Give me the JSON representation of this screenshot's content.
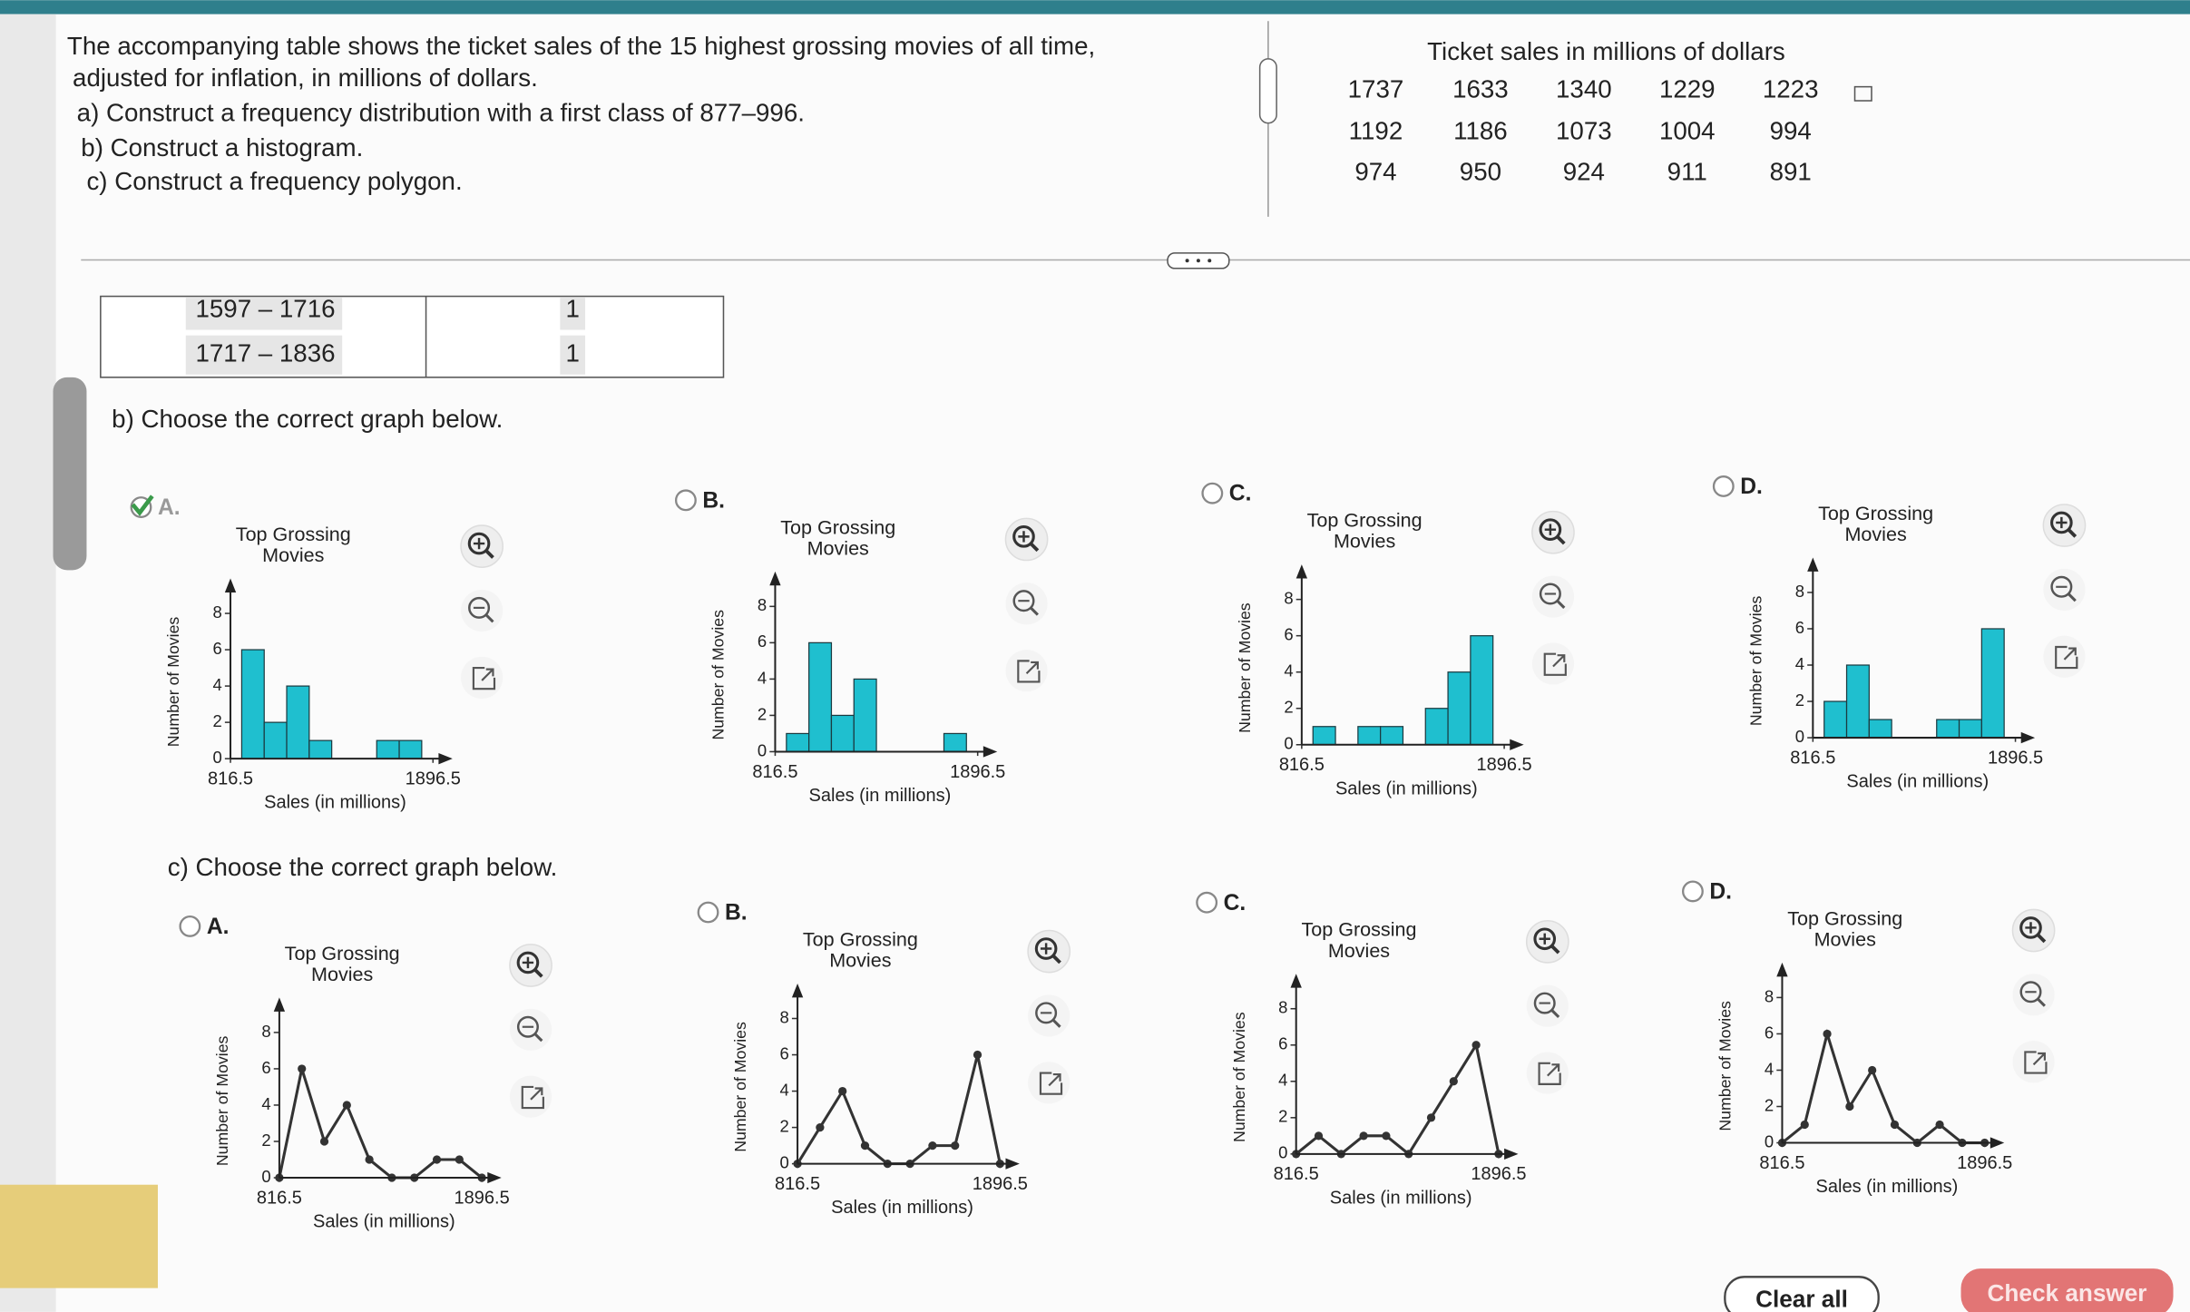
{
  "problem": {
    "lines": [
      "The accompanying table shows the ticket sales of the 15 highest grossing movies of all time,",
      "adjusted for inflation, in millions of dollars.",
      "a) Construct a frequency distribution with a first class of 877–996.",
      "b) Construct a histogram.",
      "c) Construct a frequency polygon."
    ]
  },
  "ticket_table": {
    "title": "Ticket sales in millions of dollars",
    "rows": [
      [
        1737,
        1633,
        1340,
        1229,
        1223
      ],
      [
        1192,
        1186,
        1073,
        1004,
        994
      ],
      [
        974,
        950,
        924,
        911,
        891
      ]
    ]
  },
  "freq_table": {
    "rows": [
      [
        "1597 – 1716",
        1
      ],
      [
        "1717 – 1836",
        1
      ]
    ]
  },
  "part_b": {
    "prompt": "b) Choose the correct graph below.",
    "options": [
      {
        "letter": "A.",
        "selected": true,
        "chart": {
          "type": "histogram",
          "title": "Top Grossing Movies",
          "xlabel": "Sales (in millions)",
          "ylabel": "Number of Movies",
          "bins": [
            876.5,
            996.5,
            1116.5,
            1236.5,
            1356.5,
            1476.5,
            1596.5,
            1716.5,
            1836.5
          ],
          "counts": [
            6,
            2,
            4,
            1,
            0,
            0,
            1,
            1
          ],
          "xlim": [
            816.5,
            1896.5
          ],
          "xticks": [
            816.5,
            1896.5
          ],
          "ylim": [
            0,
            9
          ],
          "yticks": [
            0,
            2,
            4,
            6,
            8
          ],
          "color": "#1fbfcf"
        }
      },
      {
        "letter": "B.",
        "chart": {
          "type": "histogram",
          "title": "Top Grossing Movies",
          "xlabel": "Sales (in millions)",
          "ylabel": "Number of Movies",
          "bins": [
            876.5,
            996.5,
            1116.5,
            1236.5,
            1356.5,
            1476.5,
            1596.5,
            1716.5,
            1836.5
          ],
          "counts": [
            1,
            6,
            2,
            4,
            0,
            0,
            0,
            1
          ],
          "xlim": [
            816.5,
            1896.5
          ],
          "xticks": [
            816.5,
            1896.5
          ],
          "ylim": [
            0,
            9
          ],
          "yticks": [
            0,
            2,
            4,
            6,
            8
          ],
          "color": "#1fbfcf"
        }
      },
      {
        "letter": "C.",
        "chart": {
          "type": "histogram",
          "title": "Top Grossing Movies",
          "xlabel": "Sales (in millions)",
          "ylabel": "Number of Movies",
          "bins": [
            876.5,
            996.5,
            1116.5,
            1236.5,
            1356.5,
            1476.5,
            1596.5,
            1716.5,
            1836.5
          ],
          "counts": [
            1,
            0,
            1,
            1,
            0,
            2,
            4,
            6
          ],
          "xlim": [
            816.5,
            1896.5
          ],
          "xticks": [
            816.5,
            1896.5
          ],
          "ylim": [
            0,
            9
          ],
          "yticks": [
            0,
            2,
            4,
            6,
            8
          ],
          "color": "#1fbfcf"
        }
      },
      {
        "letter": "D.",
        "chart": {
          "type": "histogram",
          "title": "Top Grossing Movies",
          "xlabel": "Sales (in millions)",
          "ylabel": "Number of Movies",
          "bins": [
            876.5,
            996.5,
            1116.5,
            1236.5,
            1356.5,
            1476.5,
            1596.5,
            1716.5,
            1836.5
          ],
          "counts": [
            2,
            4,
            1,
            0,
            0,
            1,
            1,
            6
          ],
          "xlim": [
            816.5,
            1896.5
          ],
          "xticks": [
            816.5,
            1896.5
          ],
          "ylim": [
            0,
            9
          ],
          "yticks": [
            0,
            2,
            4,
            6,
            8
          ],
          "color": "#1fbfcf"
        }
      }
    ]
  },
  "part_c": {
    "prompt": "c) Choose the correct graph below.",
    "options": [
      {
        "letter": "A.",
        "chart": {
          "type": "line",
          "title": "Top Grossing Movies",
          "xlabel": "Sales (in millions)",
          "ylabel": "Number of Movies",
          "x": [
            816.5,
            936.5,
            1056.5,
            1176.5,
            1296.5,
            1416.5,
            1536.5,
            1656.5,
            1776.5,
            1896.5
          ],
          "values": [
            0,
            6,
            2,
            4,
            1,
            0,
            0,
            1,
            1,
            0
          ],
          "xlim": [
            816.5,
            1896.5
          ],
          "xticks": [
            816.5,
            1896.5
          ],
          "ylim": [
            0,
            9
          ],
          "yticks": [
            0,
            2,
            4,
            6,
            8
          ],
          "color": "#333333"
        }
      },
      {
        "letter": "B.",
        "chart": {
          "type": "line",
          "title": "Top Grossing Movies",
          "xlabel": "Sales (in millions)",
          "ylabel": "Number of Movies",
          "x": [
            816.5,
            936.5,
            1056.5,
            1176.5,
            1296.5,
            1416.5,
            1536.5,
            1656.5,
            1776.5,
            1896.5
          ],
          "values": [
            0,
            2,
            4,
            1,
            0,
            0,
            1,
            1,
            6,
            0
          ],
          "xlim": [
            816.5,
            1896.5
          ],
          "xticks": [
            816.5,
            1896.5
          ],
          "ylim": [
            0,
            9
          ],
          "yticks": [
            0,
            2,
            4,
            6,
            8
          ],
          "color": "#333333"
        }
      },
      {
        "letter": "C.",
        "chart": {
          "type": "line",
          "title": "Top Grossing Movies",
          "xlabel": "Sales (in millions)",
          "ylabel": "Number of Movies",
          "x": [
            816.5,
            936.5,
            1056.5,
            1176.5,
            1296.5,
            1416.5,
            1536.5,
            1656.5,
            1776.5,
            1896.5
          ],
          "values": [
            0,
            1,
            0,
            1,
            1,
            0,
            2,
            4,
            6,
            0
          ],
          "xlim": [
            816.5,
            1896.5
          ],
          "xticks": [
            816.5,
            1896.5
          ],
          "ylim": [
            0,
            9
          ],
          "yticks": [
            0,
            2,
            4,
            6,
            8
          ],
          "color": "#333333"
        }
      },
      {
        "letter": "D.",
        "chart": {
          "type": "line",
          "title": "Top Grossing Movies",
          "xlabel": "Sales (in millions)",
          "ylabel": "Number of Movies",
          "x": [
            816.5,
            936.5,
            1056.5,
            1176.5,
            1296.5,
            1416.5,
            1536.5,
            1656.5,
            1776.5,
            1896.5
          ],
          "values": [
            0,
            1,
            6,
            2,
            4,
            1,
            0,
            1,
            0,
            0
          ],
          "xlim": [
            816.5,
            1896.5
          ],
          "xticks": [
            816.5,
            1896.5
          ],
          "ylim": [
            0,
            9
          ],
          "yticks": [
            0,
            2,
            4,
            6,
            8
          ],
          "color": "#333333"
        }
      }
    ]
  },
  "buttons": {
    "clear": "Clear all",
    "check": "Check answer"
  }
}
